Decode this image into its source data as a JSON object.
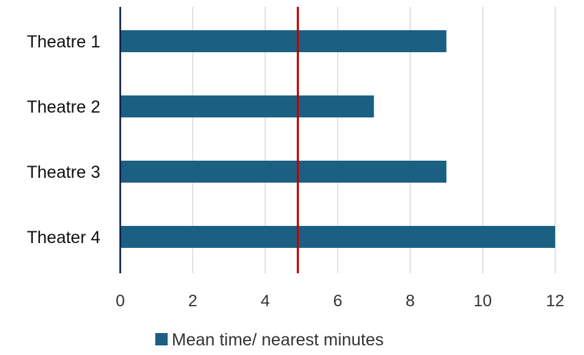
{
  "chart_data": {
    "type": "bar",
    "orientation": "horizontal",
    "categories": [
      "Theatre 1",
      "Theatre 2",
      "Theatre 3",
      "Theater 4"
    ],
    "series": [
      {
        "name": "Mean time/ nearest minutes",
        "values": [
          9,
          7,
          9,
          12
        ],
        "color": "#1B6082"
      }
    ],
    "reference_line": {
      "value": 4.9,
      "color": "#C00000"
    },
    "xlim": [
      0,
      12
    ],
    "xticks": [
      0,
      2,
      4,
      6,
      8,
      10,
      12
    ],
    "tick_labels": [
      "0",
      "2",
      "4",
      "6",
      "8",
      "10",
      "12"
    ],
    "grid": "vertical",
    "gridColor": "#D9D9D9",
    "axisColor": "#0B1F4B",
    "legend_position": "bottom",
    "title": "",
    "xlabel": "",
    "ylabel": ""
  }
}
